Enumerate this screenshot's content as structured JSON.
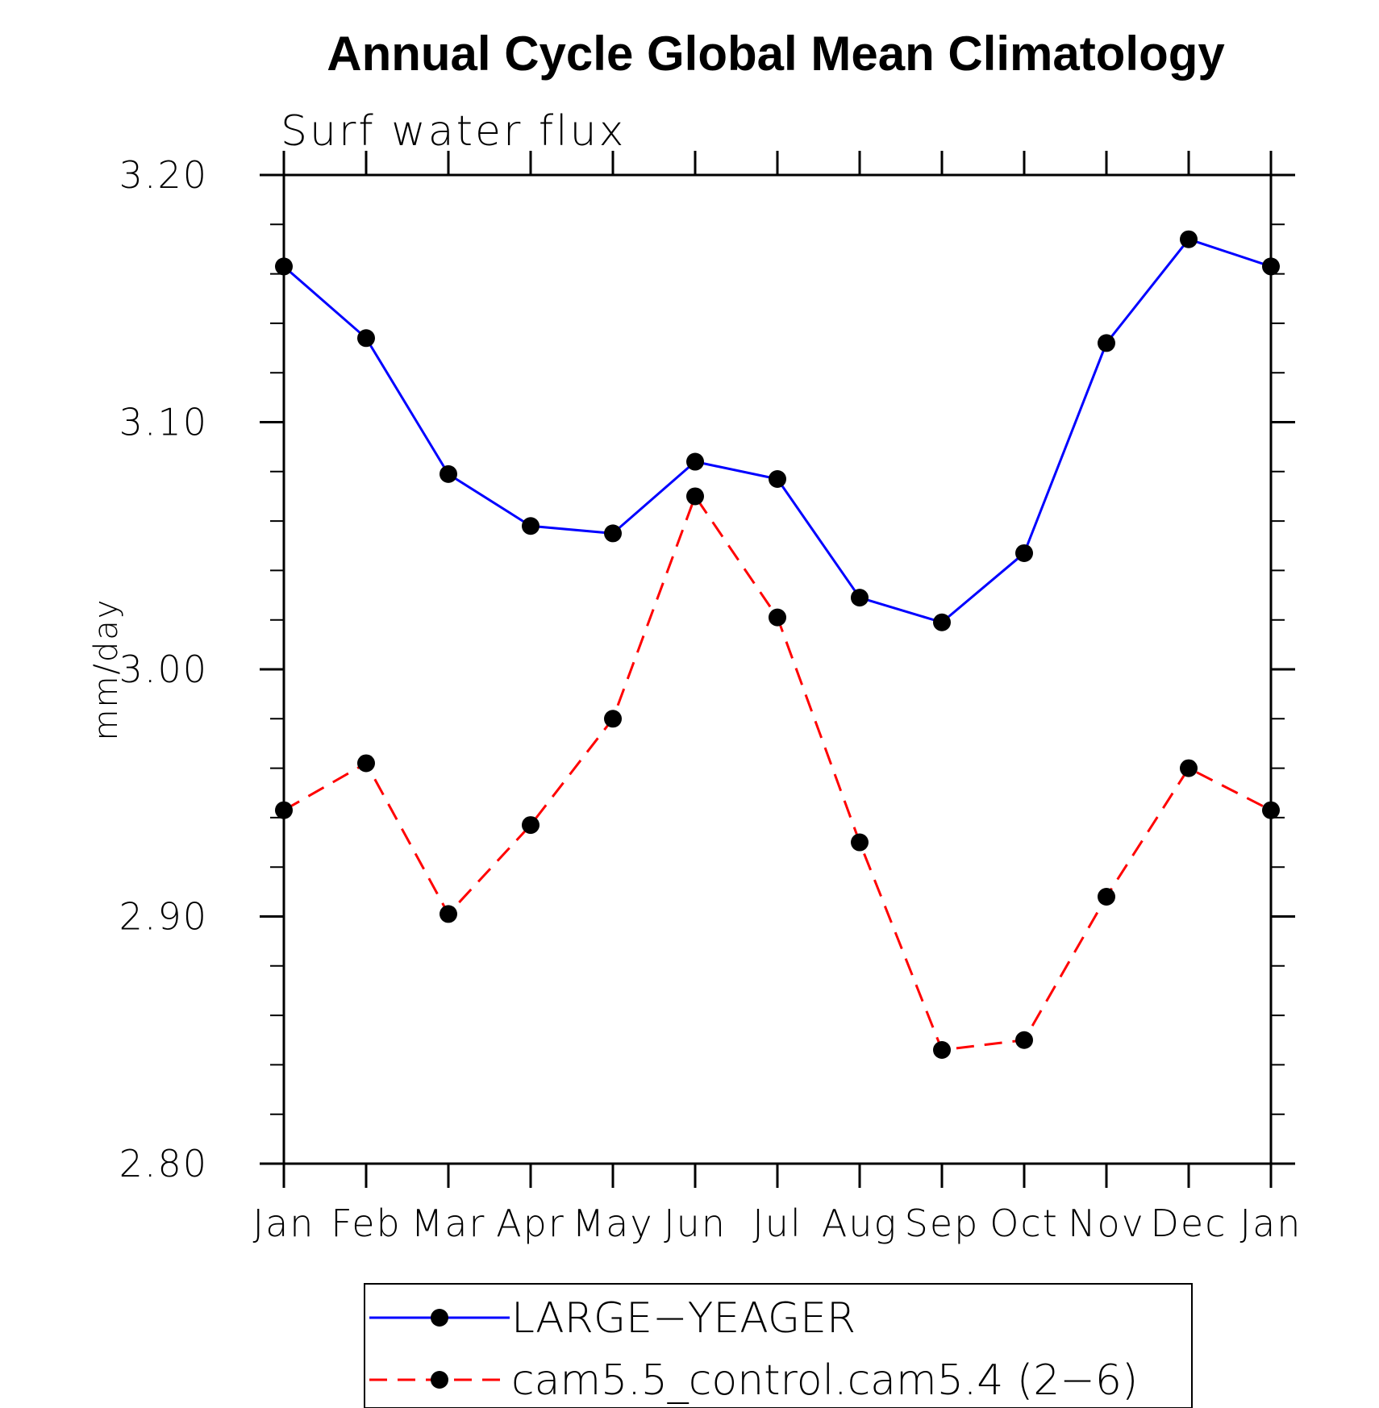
{
  "chart_data": {
    "type": "line",
    "title": "Annual Cycle Global Mean Climatology",
    "subtitle": "Surf water flux",
    "ylabel": "mm/day",
    "xlabel": "",
    "categories": [
      "Jan",
      "Feb",
      "Mar",
      "Apr",
      "May",
      "Jun",
      "Jul",
      "Aug",
      "Sep",
      "Oct",
      "Nov",
      "Dec",
      "Jan"
    ],
    "ylim": [
      2.8,
      3.2
    ],
    "yticks": [
      "3.20",
      "3.10",
      "3.00",
      "2.90",
      "2.80"
    ],
    "ytick_values": [
      3.2,
      3.1,
      3.0,
      2.9,
      2.8
    ],
    "grid": false,
    "legend_position": "bottom",
    "series": [
      {
        "name": "LARGE−YEAGER",
        "color": "#0000ff",
        "dash": "solid",
        "marker": "filled-circle",
        "values": [
          3.163,
          3.134,
          3.079,
          3.058,
          3.055,
          3.084,
          3.077,
          3.029,
          3.019,
          3.047,
          3.132,
          3.174,
          3.163
        ]
      },
      {
        "name": "cam5.5_control.cam5.4 (2−6)",
        "color": "#ff0000",
        "dash": "dashed",
        "marker": "filled-circle",
        "values": [
          2.943,
          2.962,
          2.901,
          2.937,
          2.98,
          3.07,
          3.021,
          2.93,
          2.846,
          2.85,
          2.908,
          2.96,
          2.943
        ]
      }
    ]
  }
}
